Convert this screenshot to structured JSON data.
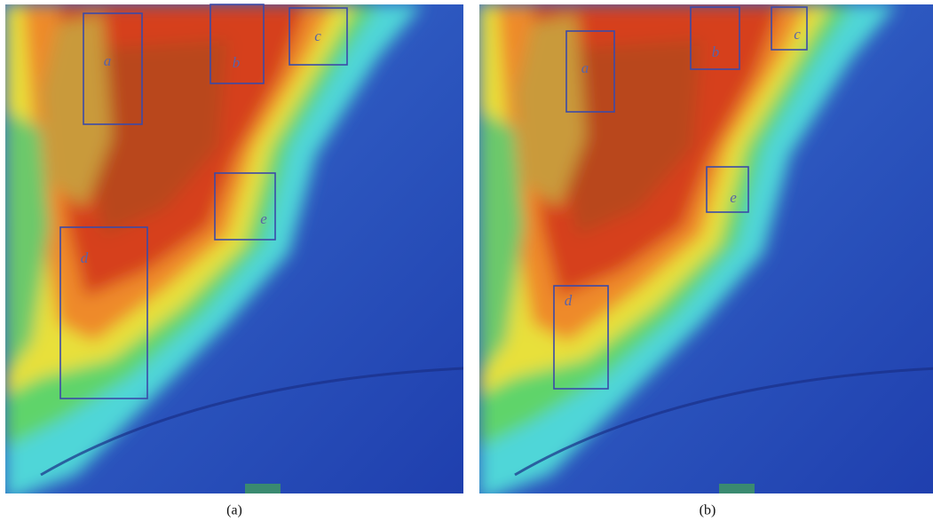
{
  "panels": [
    {
      "caption": "(a)",
      "boxes": [
        "a",
        "b",
        "c",
        "d",
        "e"
      ]
    },
    {
      "caption": "(b)",
      "boxes": [
        "a",
        "b",
        "c",
        "d",
        "e"
      ]
    }
  ]
}
